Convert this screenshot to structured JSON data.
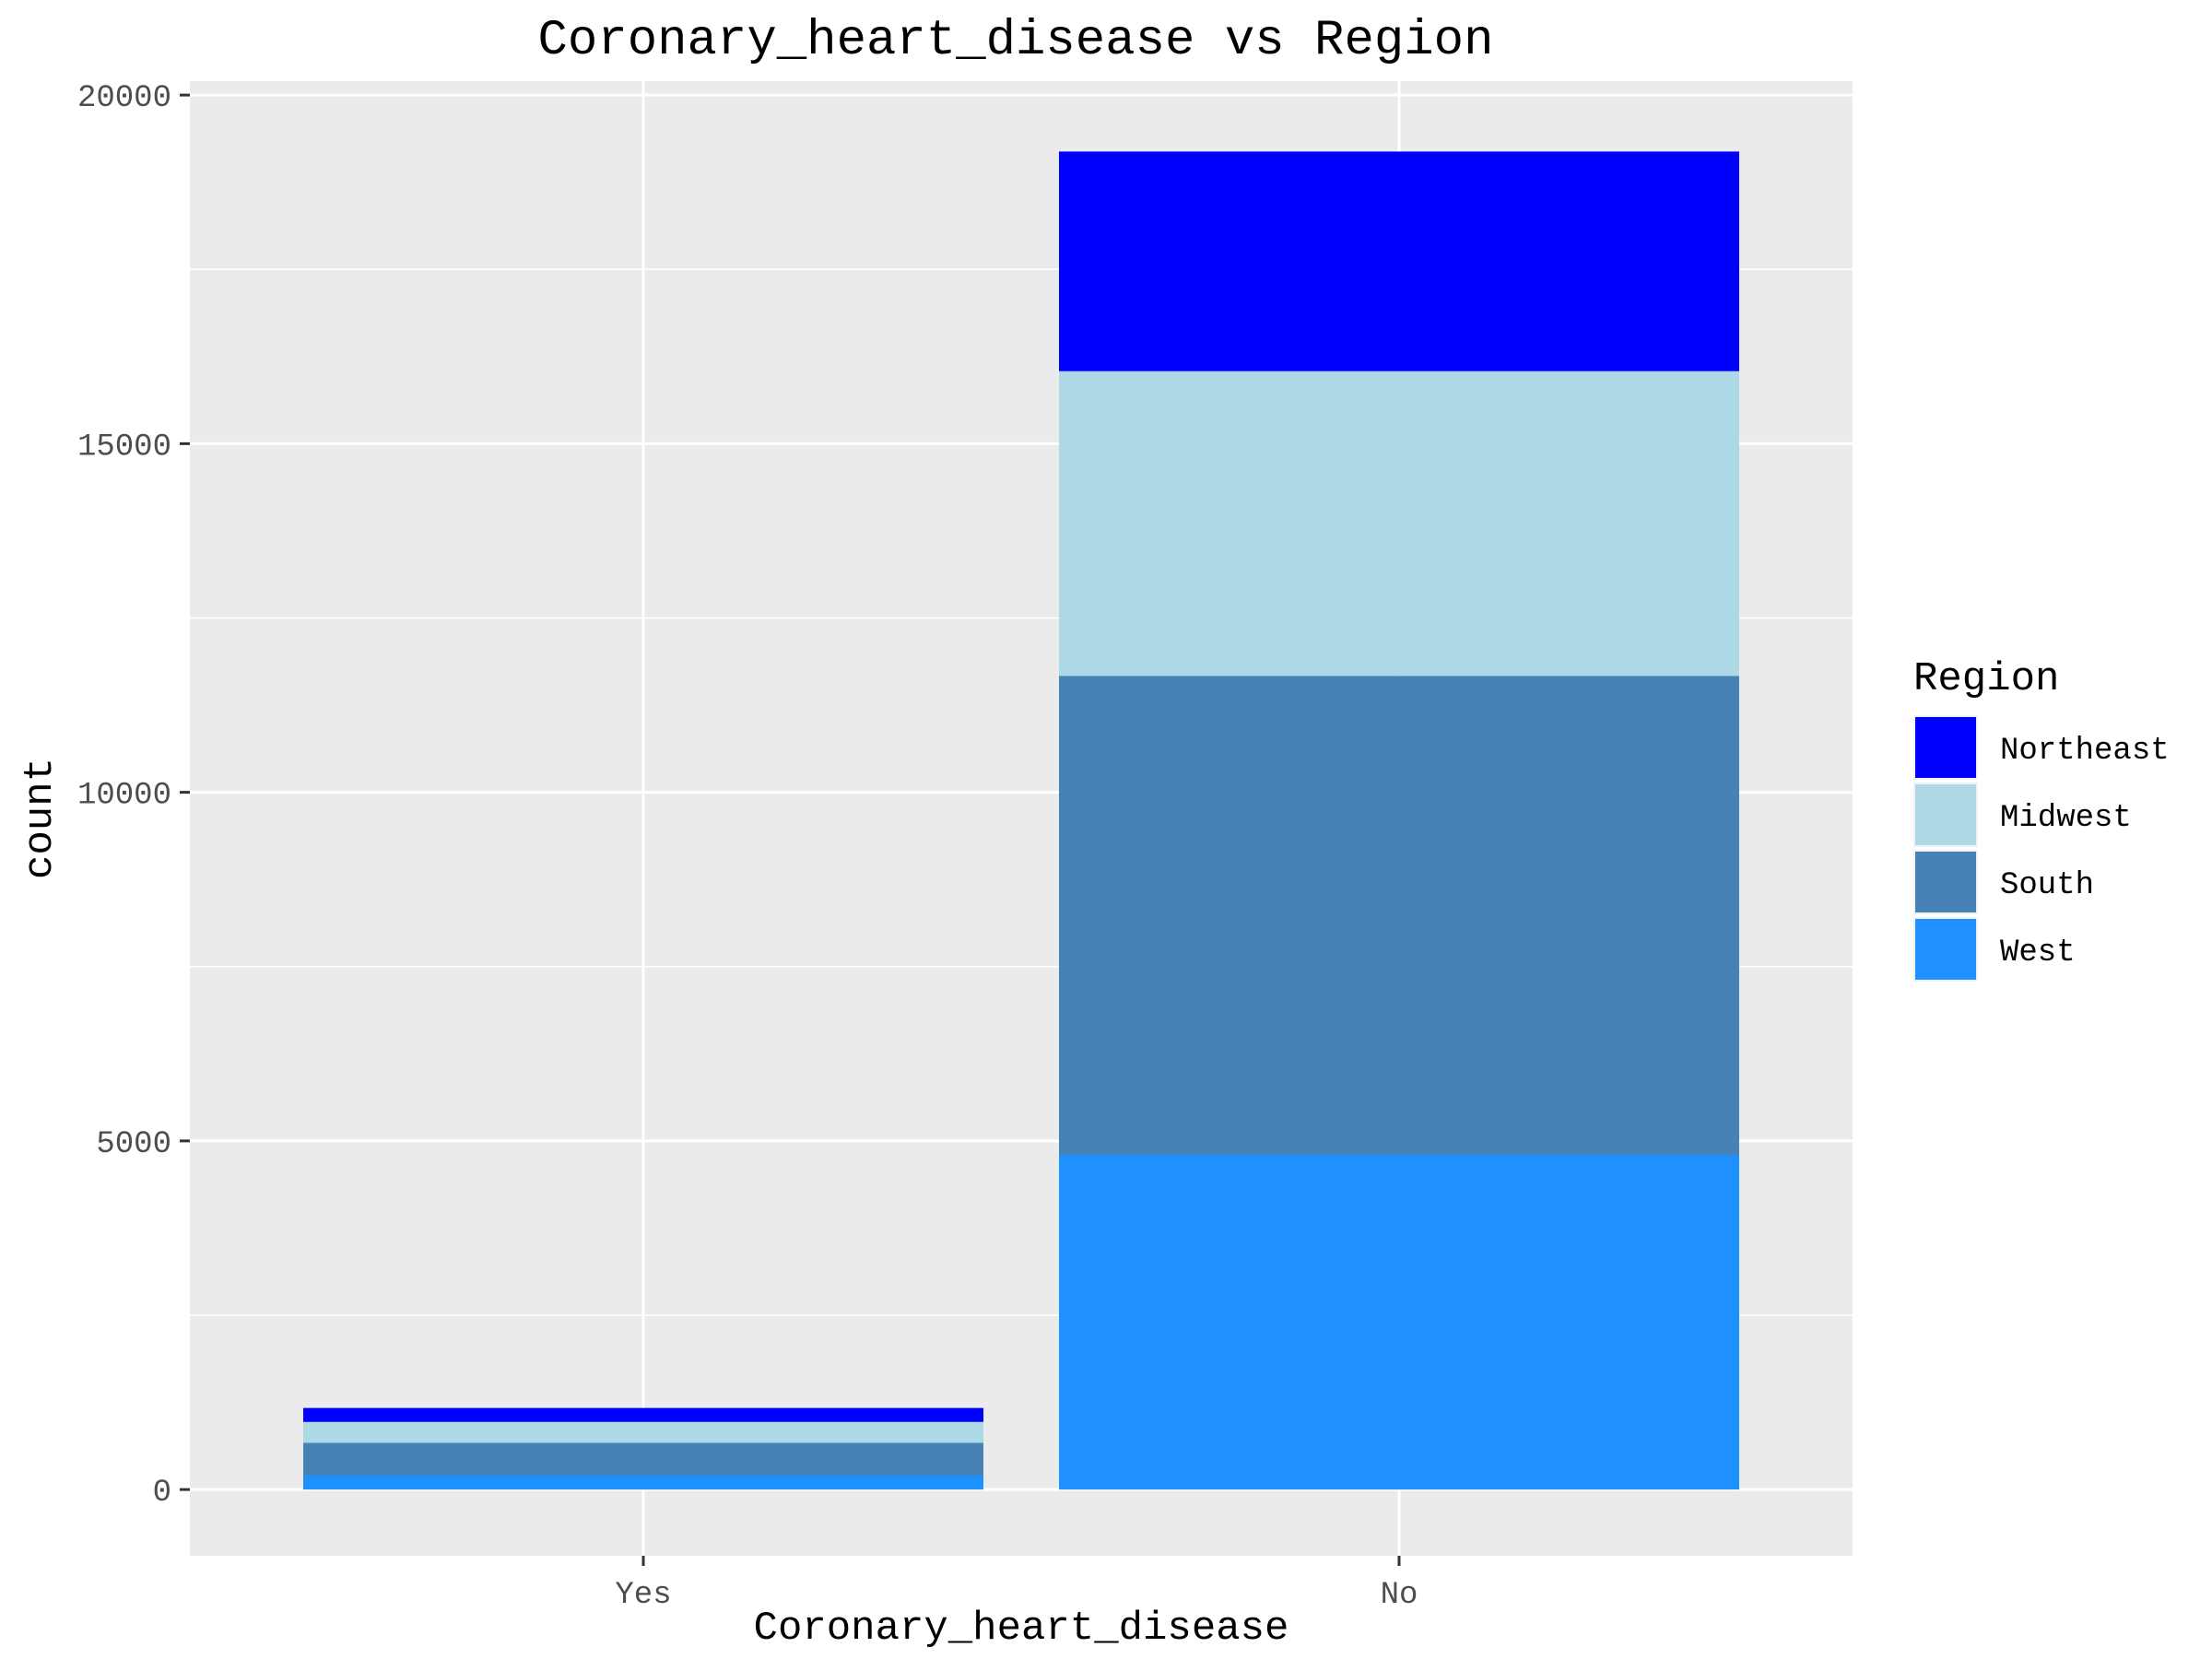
{
  "chart_data": {
    "type": "bar",
    "stacked": true,
    "title": "Coronary_heart_disease vs Region",
    "xlabel": "Coronary_heart_disease",
    "ylabel": "count",
    "categories": [
      "Yes",
      "No"
    ],
    "ylim": [
      -950,
      20200
    ],
    "yticks": [
      0,
      5000,
      10000,
      15000,
      20000
    ],
    "yticks_labels": [
      "0",
      "5000",
      "10000",
      "15000",
      "20000"
    ],
    "grid": true,
    "legend": {
      "title": "Region",
      "position": "right"
    },
    "series": [
      {
        "name": "West",
        "color": "#1E90FF",
        "values": [
          200,
          4800
        ]
      },
      {
        "name": "South",
        "color": "#4682B4",
        "values": [
          470,
          6870
        ]
      },
      {
        "name": "Midwest",
        "color": "#ADD8E6",
        "values": [
          300,
          4370
        ]
      },
      {
        "name": "Northeast",
        "color": "#0000FF",
        "values": [
          200,
          3150
        ]
      }
    ],
    "legend_order": [
      "Northeast",
      "Midwest",
      "South",
      "West"
    ]
  }
}
